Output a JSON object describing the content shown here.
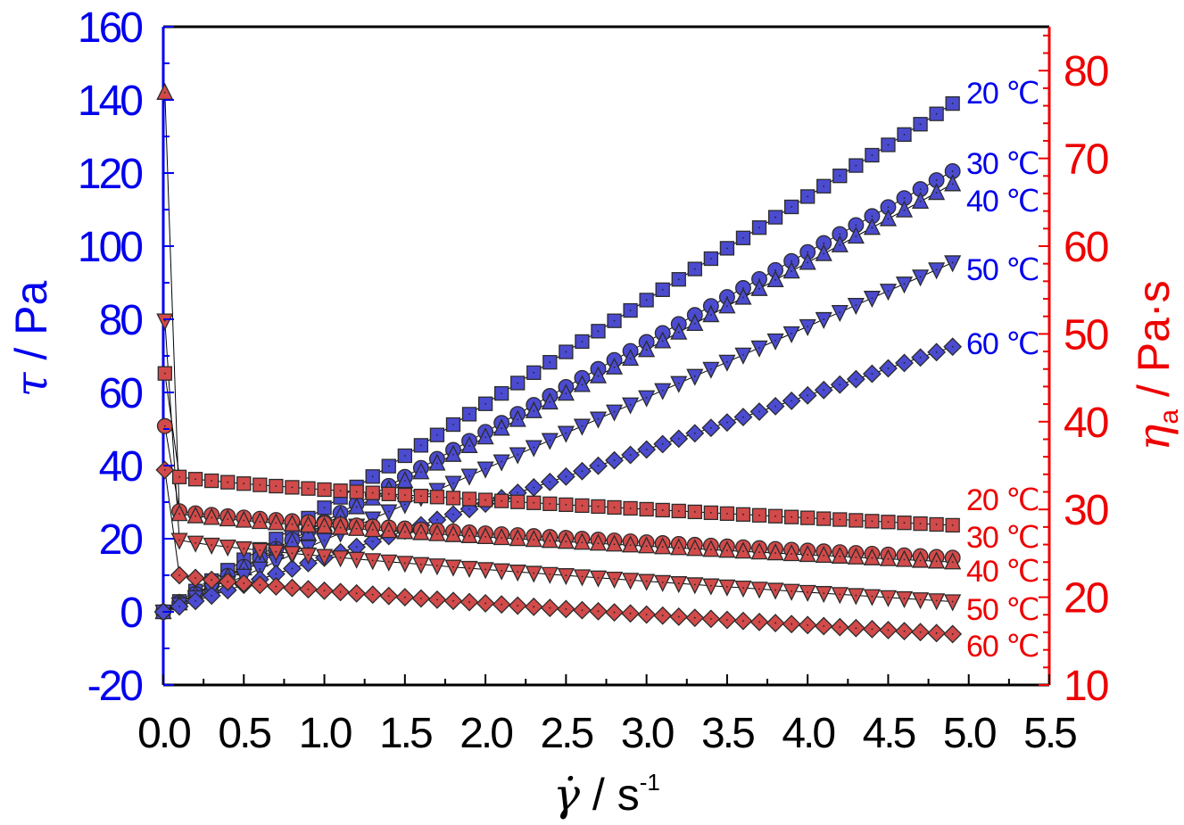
{
  "chart_data": {
    "type": "scatter",
    "x_axis": {
      "label_symbol": "γ̇",
      "label_sep": " / s",
      "label_sup": "-1",
      "range": [
        0,
        5.5
      ],
      "ticks": [
        "0.0",
        "0.5",
        "1.0",
        "1.5",
        "2.0",
        "2.5",
        "3.0",
        "3.5",
        "4.0",
        "4.5",
        "5.0",
        "5.5"
      ]
    },
    "y_left": {
      "label_symbol": "τ",
      "label_rest": " / Pa",
      "range": [
        -20,
        160
      ],
      "ticks": [
        "-20",
        "0",
        "20",
        "40",
        "60",
        "80",
        "100",
        "120",
        "140",
        "160"
      ],
      "color": "#0000ee"
    },
    "y_right": {
      "label_symbol": "η",
      "label_sub": "a",
      "label_rest": " / Pa·s",
      "range": [
        10,
        85
      ],
      "ticks": [
        "10",
        "20",
        "30",
        "40",
        "50",
        "60",
        "70",
        "80"
      ],
      "color": "#ee0000"
    },
    "colors": {
      "stress_fill": "#4b4bd2",
      "viscosity_fill": "#d24a4a",
      "stress_text": "#0000ee",
      "viscosity_text": "#ee0000"
    },
    "stress_series": [
      {
        "name": "20 ℃",
        "marker": "square",
        "slope": 28.5,
        "y_end": 139
      },
      {
        "name": "30 ℃",
        "marker": "circle",
        "slope": 24.6,
        "y_end": 120.5
      },
      {
        "name": "40 ℃",
        "marker": "triangle",
        "slope": 23.9,
        "y_end": 117
      },
      {
        "name": "50 ℃",
        "marker": "tri-down",
        "slope": 19.6,
        "y_end": 95.5
      },
      {
        "name": "60 ℃",
        "marker": "diamond",
        "slope": 14.8,
        "y_end": 72.5
      }
    ],
    "viscosity_series": [
      {
        "name": "20 ℃",
        "marker": "square",
        "first": 45.5,
        "start": 33.7,
        "end": 28.2
      },
      {
        "name": "30 ℃",
        "marker": "circle",
        "first": 39.5,
        "start": 29.8,
        "end": 24.5
      },
      {
        "name": "40 ℃",
        "marker": "triangle",
        "first": 77.5,
        "start": 29.5,
        "end": 24.0
      },
      {
        "name": "50 ℃",
        "marker": "tri-down",
        "first": 51.5,
        "start": 26.5,
        "end": 19.5
      },
      {
        "name": "60 ℃",
        "marker": "diamond",
        "first": 34.5,
        "start": 22.5,
        "end": 15.8
      }
    ],
    "legend_labels": {
      "stress": [
        "20 ℃",
        "30 ℃",
        "40 ℃",
        "50 ℃",
        "60 ℃"
      ],
      "viscosity": [
        "20 ℃",
        "30 ℃",
        "40 ℃",
        "50 ℃",
        "60 ℃"
      ]
    }
  }
}
